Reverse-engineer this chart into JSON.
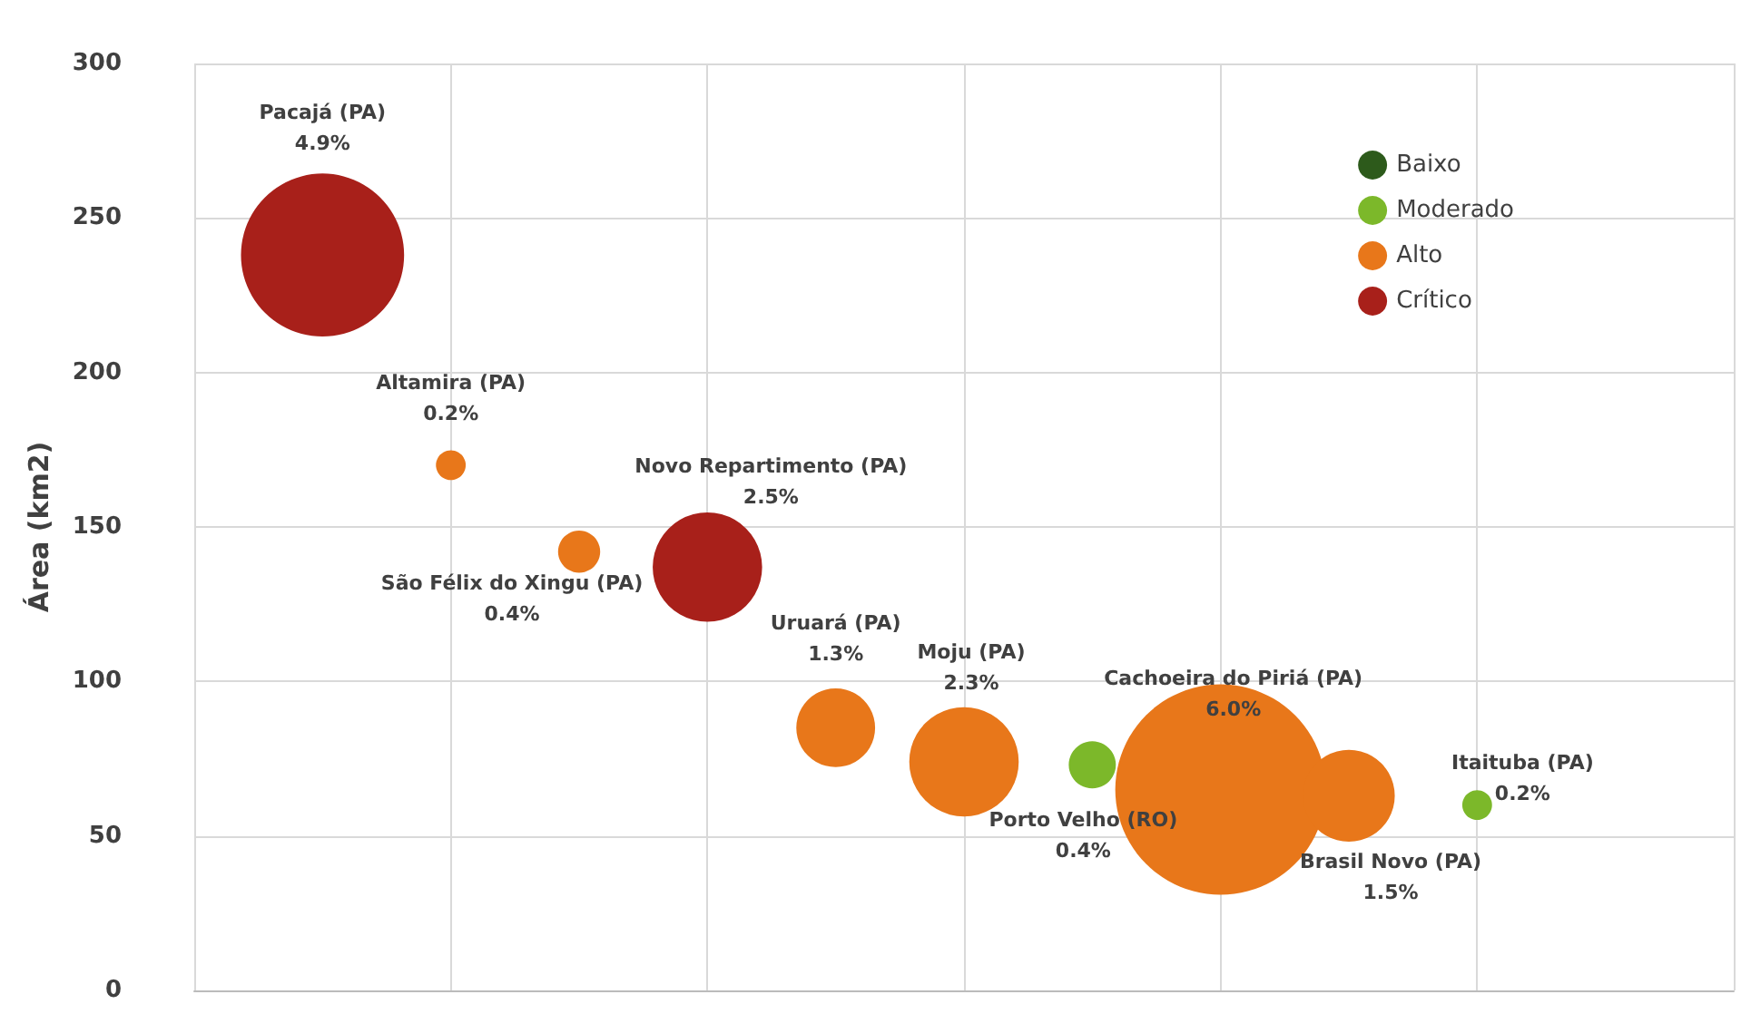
{
  "chart_data": {
    "type": "bubble",
    "ylabel": "Área (km2)",
    "categories": [
      null,
      null,
      null,
      null,
      null,
      null,
      null,
      null,
      null,
      null,
      null,
      null,
      null
    ],
    "ylim": [
      0,
      300
    ],
    "yticks": [
      0,
      50,
      100,
      150,
      200,
      250,
      300
    ],
    "grid": true,
    "legend": "top right",
    "tick_labels": "y",
    "series": [
      {
        "name": "Baixo",
        "color": "#2d5a1b",
        "values": [
          null,
          null,
          null,
          null,
          null,
          null,
          null,
          null,
          null,
          null,
          null,
          null,
          null
        ]
      },
      {
        "name": "Moderado",
        "color": "#7cb82a",
        "values": [
          null,
          null,
          null,
          null,
          null,
          null,
          null,
          73,
          null,
          null,
          60,
          null,
          null
        ],
        "sizes": [
          null,
          null,
          null,
          null,
          null,
          null,
          null,
          0.05,
          null,
          null,
          0.02,
          null,
          null
        ]
      },
      {
        "name": "Alto",
        "color": "#e8771a",
        "values": [
          null,
          null,
          170,
          142,
          null,
          85,
          74,
          null,
          65,
          63,
          null,
          null,
          null
        ],
        "sizes": [
          null,
          null,
          0.02,
          0.04,
          null,
          0.14,
          0.27,
          null,
          1,
          0.19,
          null,
          null,
          null
        ]
      },
      {
        "name": "Crítico",
        "color": "#a8201a",
        "values": [
          null,
          238,
          null,
          null,
          137,
          null,
          null,
          null,
          null,
          null,
          null,
          null,
          null
        ],
        "sizes": [
          null,
          0.6,
          null,
          null,
          0.27,
          null,
          null,
          null,
          null,
          null,
          null,
          null,
          null
        ]
      }
    ],
    "annotations": [
      "Pacajá (PA)\n4.9%",
      "Altamira (PA)\n0.2%",
      "São Félix do Xingu (PA)\n0.4%",
      "Novo Repartimento (PA)\n2.5%",
      "Uruará (PA)\n1.3%",
      "Moju (PA)\n2.3%",
      "Porto Velho (RO)\n0.4%",
      "Cachoeira do Piriá (PA)\n6.0%",
      "Brasil Novo (PA)\n1.5%",
      "Itaituba (PA)\n0.2%"
    ]
  }
}
